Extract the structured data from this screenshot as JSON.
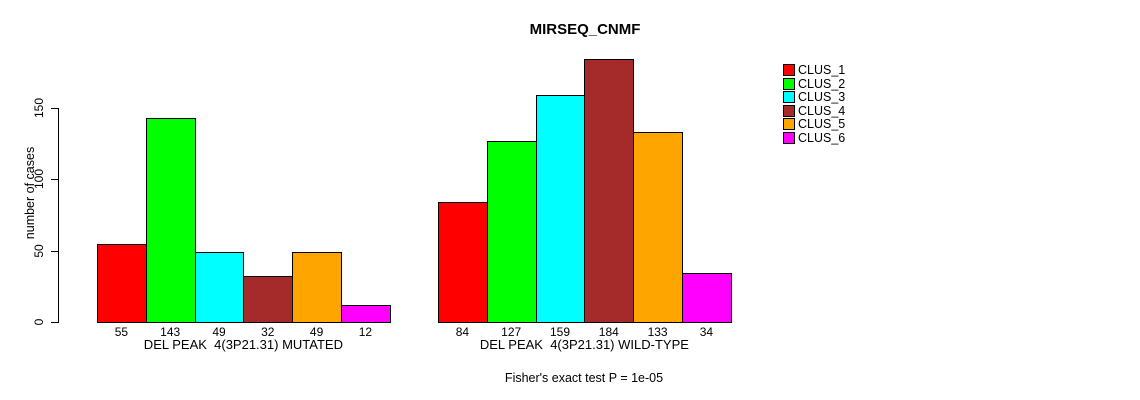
{
  "title": "MIRSEQ_CNMF",
  "chart_data": {
    "type": "bar",
    "title": "MIRSEQ_CNMF",
    "ylabel": "number of cases",
    "xlabel": "",
    "yticks": [
      0,
      50,
      100,
      150
    ],
    "ylim": [
      0,
      184
    ],
    "grid": false,
    "legend_position": "right",
    "annotation": "Fisher's exact test P = 1e-05",
    "categories": [
      "CLUS_1",
      "CLUS_2",
      "CLUS_3",
      "CLUS_4",
      "CLUS_5",
      "CLUS_6"
    ],
    "colors": [
      "#FF0000",
      "#00FF00",
      "#00FFFF",
      "#A52A2A",
      "#FFA500",
      "#FF00FF"
    ],
    "groups": [
      {
        "label": "DEL PEAK  4(3P21.31) MUTATED",
        "values": [
          55,
          143,
          49,
          32,
          49,
          12
        ]
      },
      {
        "label": "DEL PEAK  4(3P21.31) WILD-TYPE",
        "values": [
          84,
          127,
          159,
          184,
          133,
          34
        ]
      }
    ]
  },
  "legend": {
    "entries": [
      {
        "label": "CLUS_1",
        "color": "#FF0000"
      },
      {
        "label": "CLUS_2",
        "color": "#00FF00"
      },
      {
        "label": "CLUS_3",
        "color": "#00FFFF"
      },
      {
        "label": "CLUS_4",
        "color": "#A52A2A"
      },
      {
        "label": "CLUS_5",
        "color": "#FFA500"
      },
      {
        "label": "CLUS_6",
        "color": "#FF00FF"
      }
    ]
  }
}
